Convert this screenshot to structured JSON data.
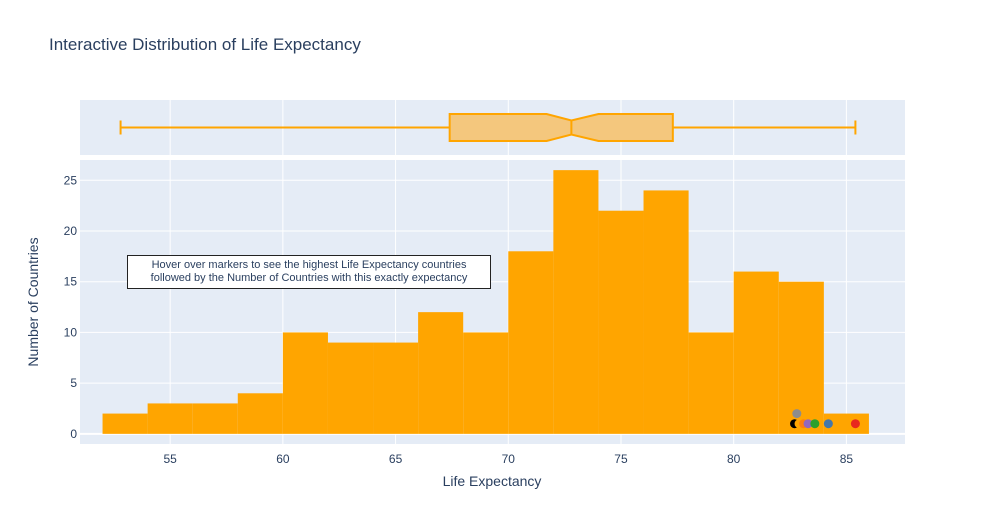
{
  "chart_data": {
    "type": "bar",
    "title": "Interactive Distribution of Life Expectancy",
    "xlabel": "Life Expectancy",
    "ylabel": "Number of Countries",
    "xlim": [
      51,
      87.6
    ],
    "ylim": [
      -1,
      27
    ],
    "xticks": [
      55,
      60,
      65,
      70,
      75,
      80,
      85
    ],
    "yticks": [
      0,
      5,
      10,
      15,
      20,
      25
    ],
    "grid": true,
    "bar_color": "#FFA500",
    "bins": [
      {
        "x0": 52,
        "x1": 54,
        "count": 2
      },
      {
        "x0": 54,
        "x1": 56,
        "count": 3
      },
      {
        "x0": 56,
        "x1": 58,
        "count": 3
      },
      {
        "x0": 58,
        "x1": 60,
        "count": 4
      },
      {
        "x0": 60,
        "x1": 62,
        "count": 10
      },
      {
        "x0": 62,
        "x1": 64,
        "count": 9
      },
      {
        "x0": 64,
        "x1": 66,
        "count": 9
      },
      {
        "x0": 66,
        "x1": 68,
        "count": 12
      },
      {
        "x0": 68,
        "x1": 70,
        "count": 10
      },
      {
        "x0": 70,
        "x1": 72,
        "count": 18
      },
      {
        "x0": 72,
        "x1": 74,
        "count": 26
      },
      {
        "x0": 74,
        "x1": 76,
        "count": 22
      },
      {
        "x0": 76,
        "x1": 78,
        "count": 24
      },
      {
        "x0": 78,
        "x1": 80,
        "count": 10
      },
      {
        "x0": 80,
        "x1": 82,
        "count": 16
      },
      {
        "x0": 82,
        "x1": 84,
        "count": 15
      },
      {
        "x0": 84,
        "x1": 86,
        "count": 2
      }
    ],
    "markers": [
      {
        "x": 82.7,
        "y": 1,
        "color": "#000000"
      },
      {
        "x": 82.9,
        "y": 1,
        "color": "#FFA500"
      },
      {
        "x": 82.8,
        "y": 2,
        "color": "#8c8c8c"
      },
      {
        "x": 83.1,
        "y": 1,
        "color": "#ff7f0e"
      },
      {
        "x": 83.3,
        "y": 1,
        "color": "#9467bd"
      },
      {
        "x": 83.6,
        "y": 1,
        "color": "#2ca02c"
      },
      {
        "x": 84.2,
        "y": 1,
        "color": "#4477aa"
      },
      {
        "x": 85.4,
        "y": 1,
        "color": "#e8281e"
      }
    ],
    "boxplot": {
      "min": 52.8,
      "q1": 67.4,
      "median": 72.8,
      "q3": 77.3,
      "max": 85.4,
      "notch_low": 71.7,
      "notch_high": 74.0,
      "color": "#FFA500",
      "fill": "#F4C77D"
    },
    "annotation": {
      "line1": "Hover over markers to see the highest Life Expectancy countries",
      "line2": "followed by the Number of Countries with this exactly expectancy"
    }
  }
}
